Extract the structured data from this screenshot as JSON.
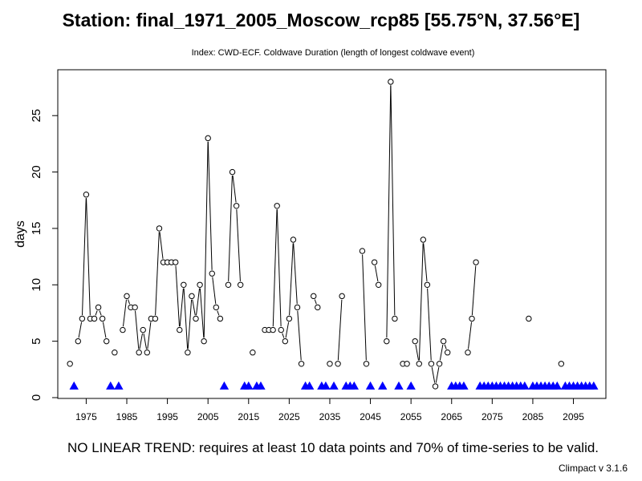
{
  "page": {
    "title": "Station: final_1971_2005_Moscow_rcp85 [55.75°N, 37.56°E]",
    "subtitle": "Index: CWD-ECF. Coldwave Duration (length of longest coldwave event)",
    "trend_note": "NO LINEAR TREND: requires at least 10 data points and 70% of time-series to be valid.",
    "version": "Climpact v 3.1.6"
  },
  "colors": {
    "marker": "#0000ff",
    "line": "#000000",
    "point_fill": "#ffffff"
  },
  "chart_data": {
    "type": "line",
    "title": "Station: final_1971_2005_Moscow_rcp85 [55.75°N, 37.56°E]",
    "subtitle": "Index: CWD-ECF. Coldwave Duration (length of longest coldwave event)",
    "xlabel": "",
    "ylabel": "days",
    "xlim": [
      1968,
      2103
    ],
    "ylim": [
      0,
      28
    ],
    "x_ticks": [
      1975,
      1985,
      1995,
      2005,
      2015,
      2025,
      2035,
      2045,
      2055,
      2065,
      2075,
      2085,
      2095
    ],
    "x_tick_labels": [
      "1975",
      "1985",
      "1995",
      "2005",
      "2015",
      "2025",
      "2035",
      "2045",
      "2055",
      "2065",
      "2075",
      "2085",
      "2095"
    ],
    "y_ticks": [
      0,
      5,
      10,
      15,
      20,
      25
    ],
    "y_tick_labels": [
      "0",
      "5",
      "10",
      "15",
      "20",
      "25"
    ],
    "grid": false,
    "series": [
      {
        "marker": "circle",
        "points": [
          [
            1971,
            3
          ],
          [
            1973,
            5
          ],
          [
            1974,
            7
          ],
          [
            1975,
            18
          ],
          [
            1976,
            7
          ],
          [
            1977,
            7
          ],
          [
            1978,
            8
          ],
          [
            1979,
            7
          ],
          [
            1980,
            5
          ],
          [
            1982,
            4
          ],
          [
            1984,
            6
          ],
          [
            1985,
            9
          ],
          [
            1986,
            8
          ],
          [
            1987,
            8
          ],
          [
            1988,
            4
          ],
          [
            1989,
            6
          ],
          [
            1990,
            4
          ],
          [
            1991,
            7
          ],
          [
            1992,
            7
          ],
          [
            1993,
            15
          ],
          [
            1994,
            12
          ],
          [
            1995,
            12
          ],
          [
            1996,
            12
          ],
          [
            1997,
            12
          ],
          [
            1998,
            6
          ],
          [
            1999,
            10
          ],
          [
            2000,
            4
          ],
          [
            2001,
            9
          ],
          [
            2002,
            7
          ],
          [
            2003,
            10
          ],
          [
            2004,
            5
          ],
          [
            2005,
            23
          ],
          [
            2006,
            11
          ],
          [
            2007,
            8
          ],
          [
            2008,
            7
          ],
          [
            2010,
            10
          ],
          [
            2011,
            20
          ],
          [
            2012,
            17
          ],
          [
            2013,
            10
          ],
          [
            2016,
            4
          ],
          [
            2019,
            6
          ],
          [
            2020,
            6
          ],
          [
            2021,
            6
          ],
          [
            2022,
            17
          ],
          [
            2023,
            6
          ],
          [
            2024,
            5
          ],
          [
            2025,
            7
          ],
          [
            2026,
            14
          ],
          [
            2027,
            8
          ],
          [
            2028,
            3
          ],
          [
            2031,
            9
          ],
          [
            2032,
            8
          ],
          [
            2035,
            3
          ],
          [
            2037,
            3
          ],
          [
            2038,
            9
          ],
          [
            2043,
            13
          ],
          [
            2044,
            3
          ],
          [
            2046,
            12
          ],
          [
            2047,
            10
          ],
          [
            2049,
            5
          ],
          [
            2050,
            28
          ],
          [
            2051,
            7
          ],
          [
            2053,
            3
          ],
          [
            2054,
            3
          ],
          [
            2056,
            5
          ],
          [
            2057,
            3
          ],
          [
            2058,
            14
          ],
          [
            2059,
            10
          ],
          [
            2060,
            3
          ],
          [
            2061,
            1
          ],
          [
            2062,
            3
          ],
          [
            2063,
            5
          ],
          [
            2064,
            4
          ],
          [
            2069,
            4
          ],
          [
            2070,
            7
          ],
          [
            2071,
            12
          ],
          [
            2084,
            7
          ],
          [
            2092,
            3
          ]
        ]
      },
      {
        "name": "",
        "marker": "triangle",
        "color": "#0000ff",
        "y": 1,
        "x": [
          1972,
          1981,
          1983,
          2009,
          2014,
          2015,
          2017,
          2018,
          2029,
          2030,
          2033,
          2034,
          2036,
          2039,
          2040,
          2041,
          2045,
          2048,
          2052,
          2055,
          2065,
          2066,
          2067,
          2068,
          2072,
          2073,
          2074,
          2075,
          2076,
          2077,
          2078,
          2079,
          2080,
          2081,
          2082,
          2083,
          2085,
          2086,
          2087,
          2088,
          2089,
          2090,
          2091,
          2093,
          2094,
          2095,
          2096,
          2097,
          2098,
          2099,
          2100
        ]
      }
    ]
  }
}
